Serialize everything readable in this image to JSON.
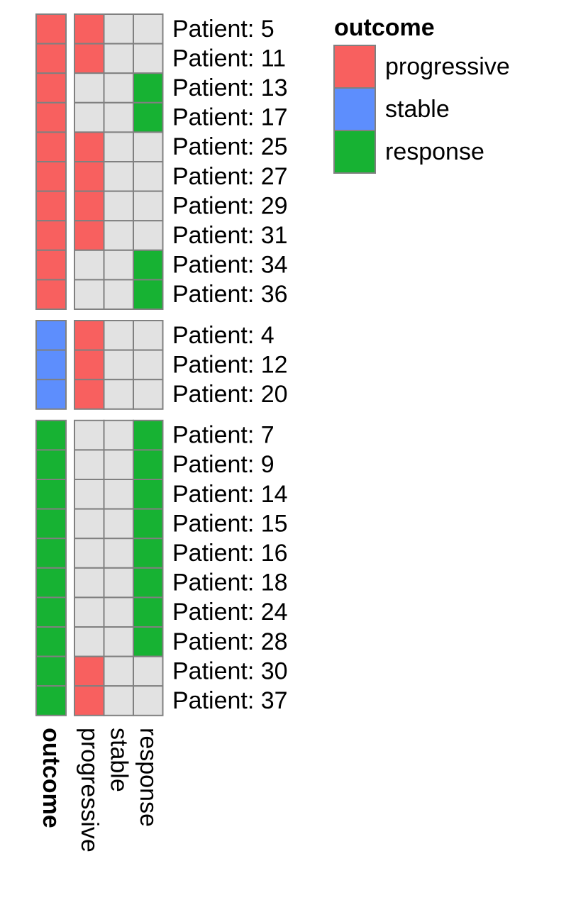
{
  "chart_data": {
    "type": "heatmap",
    "annotation_title": "outcome",
    "columns": [
      "progressive",
      "stable",
      "response"
    ],
    "groups": [
      {
        "outcome": "progressive",
        "rows": [
          {
            "label": "Patient: 5",
            "predicted": "progressive"
          },
          {
            "label": "Patient: 11",
            "predicted": "progressive"
          },
          {
            "label": "Patient: 13",
            "predicted": "response"
          },
          {
            "label": "Patient: 17",
            "predicted": "response"
          },
          {
            "label": "Patient: 25",
            "predicted": "progressive"
          },
          {
            "label": "Patient: 27",
            "predicted": "progressive"
          },
          {
            "label": "Patient: 29",
            "predicted": "progressive"
          },
          {
            "label": "Patient: 31",
            "predicted": "progressive"
          },
          {
            "label": "Patient: 34",
            "predicted": "response"
          },
          {
            "label": "Patient: 36",
            "predicted": "response"
          }
        ]
      },
      {
        "outcome": "stable",
        "rows": [
          {
            "label": "Patient: 4",
            "predicted": "progressive"
          },
          {
            "label": "Patient: 12",
            "predicted": "progressive"
          },
          {
            "label": "Patient: 20",
            "predicted": "progressive"
          }
        ]
      },
      {
        "outcome": "response",
        "rows": [
          {
            "label": "Patient: 7",
            "predicted": "response"
          },
          {
            "label": "Patient: 9",
            "predicted": "response"
          },
          {
            "label": "Patient: 14",
            "predicted": "response"
          },
          {
            "label": "Patient: 15",
            "predicted": "response"
          },
          {
            "label": "Patient: 16",
            "predicted": "response"
          },
          {
            "label": "Patient: 18",
            "predicted": "response"
          },
          {
            "label": "Patient: 24",
            "predicted": "response"
          },
          {
            "label": "Patient: 28",
            "predicted": "response"
          },
          {
            "label": "Patient: 30",
            "predicted": "progressive"
          },
          {
            "label": "Patient: 37",
            "predicted": "progressive"
          }
        ]
      }
    ],
    "legend": {
      "title": "outcome",
      "position": "top-right",
      "entries": [
        "progressive",
        "stable",
        "response"
      ]
    },
    "colors": {
      "progressive": "#f8605f",
      "stable": "#5d8efd",
      "response": "#17b233",
      "empty": "#e2e2e2",
      "border": "#808080"
    }
  }
}
